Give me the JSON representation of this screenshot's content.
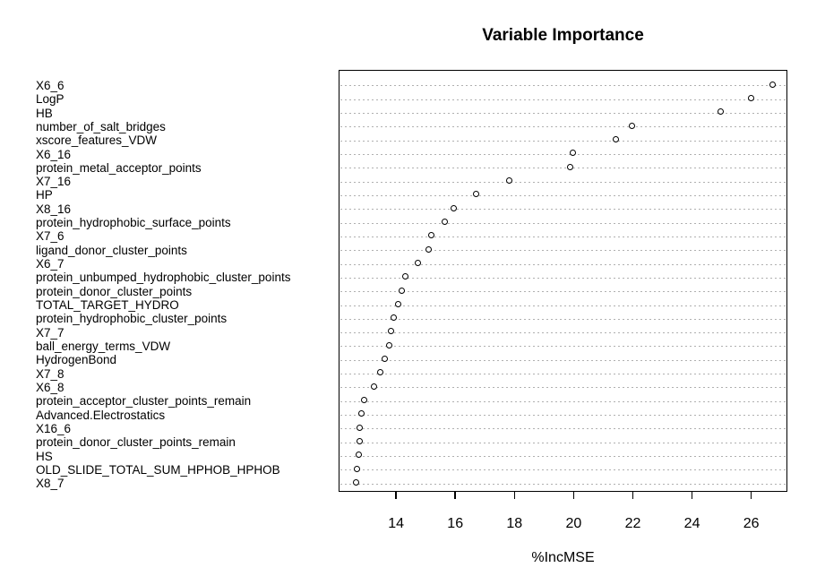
{
  "chart_data": {
    "type": "scatter",
    "variant": "dotchart-variable-importance",
    "title": "Variable Importance",
    "xlabel": "%IncMSE",
    "ylabel": "",
    "xlim": [
      12.06,
      27.22
    ],
    "xticks": [
      14,
      16,
      18,
      20,
      22,
      24,
      26
    ],
    "grid": "horizontal dotted gridline per category",
    "legend": "none",
    "point_style": "open circle, black stroke, white fill",
    "categories": [
      "X6_6",
      "LogP",
      "HB",
      "number_of_salt_bridges",
      "xscore_features_VDW",
      "X6_16",
      "protein_metal_acceptor_points",
      "X7_16",
      "HP",
      "X8_16",
      "protein_hydrophobic_surface_points",
      "X7_6",
      "ligand_donor_cluster_points",
      "X6_7",
      "protein_unbumped_hydrophobic_cluster_points",
      "protein_donor_cluster_points",
      "TOTAL_TARGET_HYDRO",
      "protein_hydrophobic_cluster_points",
      "X7_7",
      "ball_energy_terms_VDW",
      "HydrogenBond",
      "X7_8",
      "X6_8",
      "protein_acceptor_cluster_points_remain",
      "Advanced.Electrostatics",
      "X16_6",
      "protein_donor_cluster_points_remain",
      "HS",
      "OLD_SLIDE_TOTAL_SUM_HPHOB_HPHOB",
      "X8_7"
    ],
    "values": [
      26.72,
      25.99,
      24.98,
      21.97,
      21.44,
      19.97,
      19.9,
      17.82,
      16.7,
      15.94,
      15.64,
      15.19,
      15.11,
      14.73,
      14.31,
      14.21,
      14.09,
      13.93,
      13.83,
      13.78,
      13.62,
      13.48,
      13.25,
      12.93,
      12.85,
      12.78,
      12.78,
      12.75,
      12.68,
      12.65
    ]
  },
  "colors": {
    "background": "#ffffff",
    "plot_border": "#000000",
    "gridline": "#b0b0b0",
    "point_stroke": "#000000",
    "point_fill": "#ffffff",
    "text": "#000000"
  }
}
